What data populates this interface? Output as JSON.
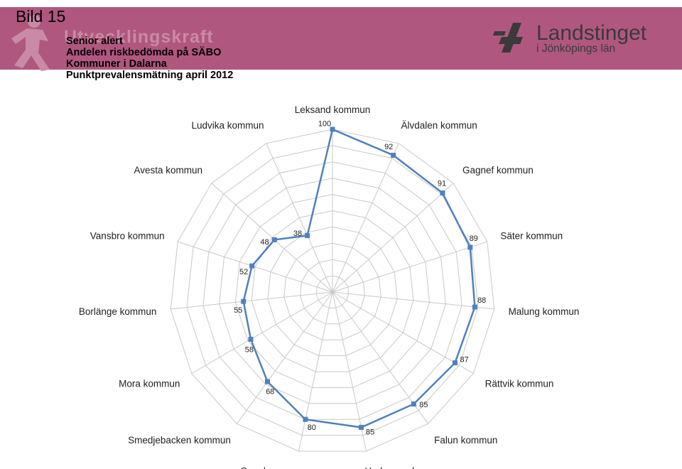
{
  "header": {
    "slide_label": "Bild 15",
    "watermark": "Utvecklingskraft",
    "title_lines": [
      "Senior alert",
      "Andelen riskbedömda på SÄBO",
      "Kommuner i Dalarna",
      "Punktprevalensmätning april 2012"
    ],
    "logo": {
      "line1": "Landstinget",
      "line2": "i Jönköpings län",
      "icon": "landstinget-logo-icon"
    }
  },
  "colors": {
    "banner": "#b0577f",
    "series": "#4f81bd",
    "grid": "#c8c8c8"
  },
  "chart_data": {
    "type": "radar",
    "title": "",
    "categories": [
      "Leksand kommun",
      "Älvdalen kommun",
      "Gagnef kommun",
      "Säter kommun",
      "Malung kommun",
      "Rättvik kommun",
      "Falun kommun",
      "Hedemora kommun",
      "Orsa kommun",
      "Smedjebacken kommun",
      "Mora kommun",
      "Borlänge kommun",
      "Vansbro kommun",
      "Avesta kommun",
      "Ludvika kommun"
    ],
    "series": [
      {
        "values": [
          100,
          92,
          91,
          89,
          88,
          87,
          85,
          85,
          80,
          68,
          58,
          55,
          52,
          48,
          38
        ]
      }
    ],
    "range": [
      0,
      100
    ],
    "grid_rings": 10,
    "grid": true,
    "legend": "none"
  }
}
